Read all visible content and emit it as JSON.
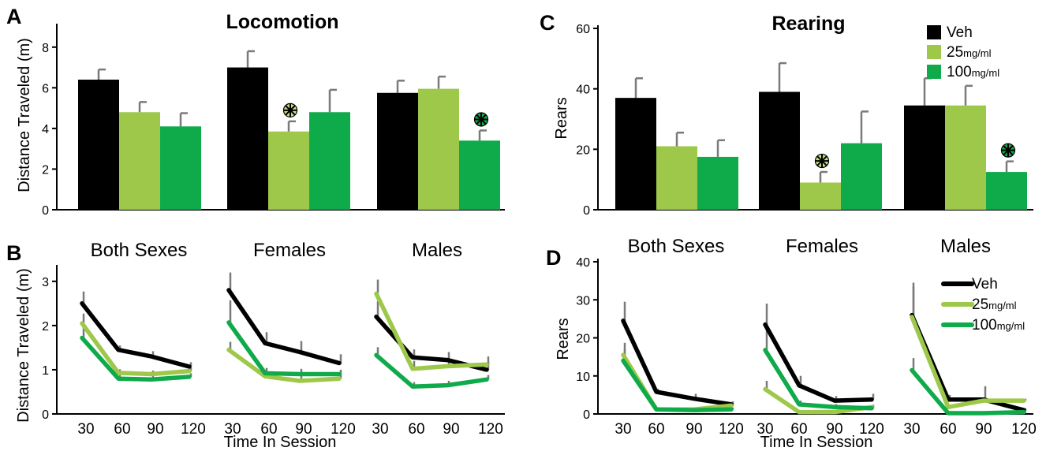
{
  "colors": {
    "veh": "#000000",
    "light_green": "#9dc849",
    "dark_green": "#0faa49",
    "error": "#7a7a7a",
    "star_fill_light": "#c2e07f",
    "star_fill_dark": "#18a84a"
  },
  "chart_data": [
    {
      "panel": "A",
      "type": "bar",
      "title": "Locomotion",
      "xlabel": "",
      "ylabel": "Distance Traveled (m)",
      "ylim": [
        0,
        9
      ],
      "yticks": [
        "0",
        "2",
        "4",
        "6",
        "8"
      ],
      "groups": [
        "",
        "",
        ""
      ],
      "series": [
        {
          "name": "Veh",
          "color_key": "veh",
          "values": [
            6.4,
            7.0,
            5.75
          ],
          "errors": [
            0.5,
            0.8,
            0.6
          ]
        },
        {
          "name": "25mg/ml",
          "color_key": "light_green",
          "values": [
            4.8,
            3.85,
            5.95
          ],
          "errors": [
            0.5,
            0.5,
            0.6
          ]
        },
        {
          "name": "100mg/ml",
          "color_key": "dark_green",
          "values": [
            4.1,
            4.8,
            3.4
          ],
          "errors": [
            0.65,
            1.1,
            0.5
          ]
        }
      ],
      "significance": [
        {
          "group": 1,
          "series": 1,
          "symbol": "✲"
        },
        {
          "group": 2,
          "series": 2,
          "symbol": "✲"
        }
      ]
    },
    {
      "panel": "C",
      "type": "bar",
      "title": "Rearing",
      "xlabel": "",
      "ylabel": "Rears",
      "ylim": [
        0,
        60
      ],
      "yticks": [
        "0",
        "20",
        "40",
        "60"
      ],
      "groups": [
        "",
        "",
        ""
      ],
      "legend": {
        "position": "top-right",
        "items": [
          {
            "main": "Veh",
            "sub": "",
            "color_key": "veh"
          },
          {
            "main": "25",
            "sub": "mg/ml",
            "color_key": "light_green"
          },
          {
            "main": "100",
            "sub": "mg/ml",
            "color_key": "dark_green"
          }
        ]
      },
      "series": [
        {
          "name": "Veh",
          "color_key": "veh",
          "values": [
            37,
            39,
            34.5
          ],
          "errors": [
            6.5,
            9.5,
            9
          ]
        },
        {
          "name": "25mg/ml",
          "color_key": "light_green",
          "values": [
            21,
            9,
            34.5
          ],
          "errors": [
            4.5,
            3.5,
            6.5
          ]
        },
        {
          "name": "100mg/ml",
          "color_key": "dark_green",
          "values": [
            17.5,
            22,
            12.5
          ],
          "errors": [
            5.5,
            10.5,
            3.5
          ]
        }
      ],
      "significance": [
        {
          "group": 1,
          "series": 1,
          "symbol": "✲"
        },
        {
          "group": 2,
          "series": 2,
          "symbol": "✲"
        }
      ]
    },
    {
      "panel": "B",
      "type": "line",
      "title": "",
      "xlabel": "Time In Session",
      "ylabel": "Distance Traveled (m)",
      "ylim": [
        0,
        3.3
      ],
      "yticks": [
        "0",
        "1",
        "2",
        "3"
      ],
      "x": [
        30,
        60,
        90,
        120
      ],
      "xticks": [
        "30",
        "60",
        "90",
        "120"
      ],
      "subplots": [
        {
          "label": "Both Sexes",
          "series": [
            {
              "name": "Veh",
              "color_key": "veh",
              "values": [
                2.5,
                1.45,
                1.3,
                1.07
              ],
              "errors": [
                0.27,
                0.1,
                0.12,
                0.1
              ]
            },
            {
              "name": "25mg/ml",
              "color_key": "light_green",
              "values": [
                2.05,
                0.93,
                0.9,
                0.97
              ],
              "errors": [
                0.22,
                0.08,
                0.08,
                0.08
              ]
            },
            {
              "name": "100mg/ml",
              "color_key": "dark_green",
              "values": [
                1.72,
                0.8,
                0.78,
                0.84
              ],
              "errors": [
                0.22,
                0.08,
                0.08,
                0.08
              ]
            }
          ]
        },
        {
          "label": "Females",
          "series": [
            {
              "name": "Veh",
              "color_key": "veh",
              "values": [
                2.8,
                1.6,
                1.4,
                1.15
              ],
              "errors": [
                0.4,
                0.25,
                0.25,
                0.2
              ]
            },
            {
              "name": "25mg/ml",
              "color_key": "light_green",
              "values": [
                1.45,
                0.85,
                0.75,
                0.8
              ],
              "errors": [
                0.18,
                0.12,
                0.12,
                0.1
              ]
            },
            {
              "name": "100mg/ml",
              "color_key": "dark_green",
              "values": [
                2.07,
                0.92,
                0.9,
                0.9
              ],
              "errors": [
                0.5,
                0.12,
                0.12,
                0.1
              ]
            }
          ]
        },
        {
          "label": "Males",
          "series": [
            {
              "name": "Veh",
              "color_key": "veh",
              "values": [
                2.2,
                1.28,
                1.22,
                1.0
              ],
              "errors": [
                0.35,
                0.18,
                0.18,
                0.18
              ]
            },
            {
              "name": "25mg/ml",
              "color_key": "light_green",
              "values": [
                2.72,
                1.02,
                1.08,
                1.12
              ],
              "errors": [
                0.32,
                0.18,
                0.2,
                0.18
              ]
            },
            {
              "name": "100mg/ml",
              "color_key": "dark_green",
              "values": [
                1.33,
                0.62,
                0.65,
                0.78
              ],
              "errors": [
                0.18,
                0.1,
                0.1,
                0.1
              ]
            }
          ]
        }
      ]
    },
    {
      "panel": "D",
      "type": "line",
      "title": "",
      "xlabel": "Time In Session",
      "ylabel": "Rears",
      "ylim": [
        0,
        40
      ],
      "yticks": [
        "0",
        "10",
        "20",
        "30",
        "40"
      ],
      "x": [
        30,
        60,
        90,
        120
      ],
      "xticks": [
        "30",
        "60",
        "90",
        "120"
      ],
      "legend": {
        "position": "top-right",
        "items": [
          {
            "main": "Veh",
            "sub": "",
            "color_key": "veh"
          },
          {
            "main": "25",
            "sub": "mg/ml",
            "color_key": "light_green"
          },
          {
            "main": "100",
            "sub": "mg/ml",
            "color_key": "dark_green"
          }
        ]
      },
      "subplots": [
        {
          "label": "Both Sexes",
          "series": [
            {
              "name": "Veh",
              "color_key": "veh",
              "values": [
                24.5,
                5.8,
                4.0,
                2.5
              ],
              "errors": [
                5,
                0.8,
                1.3,
                0.8
              ]
            },
            {
              "name": "25mg/ml",
              "color_key": "light_green",
              "values": [
                15.5,
                1.2,
                1.2,
                2.2
              ],
              "errors": [
                3.2,
                0.5,
                0.5,
                0.8
              ]
            },
            {
              "name": "100mg/ml",
              "color_key": "dark_green",
              "values": [
                14,
                1.2,
                1.0,
                1.2
              ],
              "errors": [
                3,
                0.5,
                0.5,
                0.5
              ]
            }
          ]
        },
        {
          "label": "Females",
          "series": [
            {
              "name": "Veh",
              "color_key": "veh",
              "values": [
                23.5,
                7.5,
                3.5,
                3.8
              ],
              "errors": [
                5.5,
                2.5,
                1.2,
                1.5
              ]
            },
            {
              "name": "25mg/ml",
              "color_key": "light_green",
              "values": [
                6.5,
                0.5,
                0.5,
                1.8
              ],
              "errors": [
                2.2,
                0.5,
                0.5,
                0.6
              ]
            },
            {
              "name": "100mg/ml",
              "color_key": "dark_green",
              "values": [
                16.8,
                2.5,
                1.8,
                1.5
              ],
              "errors": [
                7.5,
                1,
                0.8,
                0.6
              ]
            }
          ]
        },
        {
          "label": "Males",
          "series": [
            {
              "name": "Veh",
              "color_key": "veh",
              "values": [
                26,
                3.8,
                3.8,
                1.0
              ],
              "errors": [
                8.5,
                1.2,
                3.5,
                0.5
              ]
            },
            {
              "name": "25mg/ml",
              "color_key": "light_green",
              "values": [
                25.5,
                1.8,
                3.5,
                3.5
              ],
              "errors": [
                8,
                0.5,
                0.5,
                0.5
              ]
            },
            {
              "name": "100mg/ml",
              "color_key": "dark_green",
              "values": [
                11.5,
                0.2,
                0.2,
                0.5
              ],
              "errors": [
                3.2,
                0.2,
                0.2,
                0.2
              ]
            }
          ]
        }
      ]
    }
  ]
}
